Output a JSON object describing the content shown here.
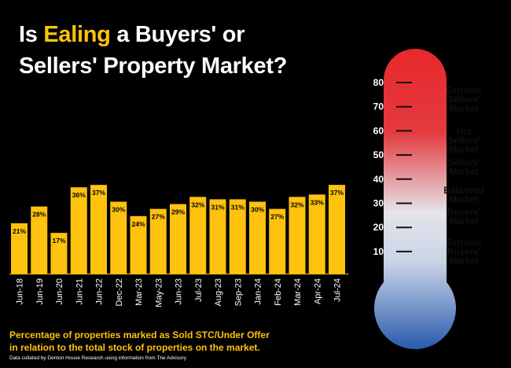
{
  "title": {
    "prefix": "Is ",
    "highlight": "Ealing",
    "suffix": " a Buyers' or",
    "line2": "Sellers' Property Market?"
  },
  "caption": {
    "line1": "Percentage of properties marked as Sold STC/Under Offer",
    "line2": "in relation to the total stock of properties on the market."
  },
  "credit": "Data collated by Denton House Research using information from The Advisory",
  "colors": {
    "bar": "#ffc20e",
    "highlight": "#ffc20e",
    "thermo_top": "#e8282c",
    "thermo_mid": "#e4e4ea",
    "thermo_bottom": "#2e5fb0"
  },
  "chart_data": {
    "type": "bar",
    "categories": [
      "Jun-18",
      "Jun-19",
      "Jun-20",
      "Jun-21",
      "Jun-22",
      "Dec-22",
      "Mar-23",
      "May-23",
      "Jun-23",
      "Jul-23",
      "Aug-23",
      "Sep-23",
      "Jan-24",
      "Feb-24",
      "Mar-24",
      "Apr-24",
      "Jul-24"
    ],
    "values": [
      21,
      28,
      17,
      36,
      37,
      30,
      24,
      27,
      29,
      32,
      31,
      31,
      30,
      27,
      32,
      33,
      37
    ],
    "value_labels": [
      "21%",
      "28%",
      "17%",
      "36%",
      "37%",
      "30%",
      "24%",
      "27%",
      "29%",
      "32%",
      "31%",
      "31%",
      "30%",
      "27%",
      "32%",
      "33%",
      "37%"
    ],
    "ylim": [
      0,
      80
    ],
    "grid": false
  },
  "thermometer": {
    "ticks": [
      "80",
      "70",
      "60",
      "50",
      "40",
      "30",
      "20",
      "10"
    ],
    "tick_values": [
      80,
      70,
      60,
      50,
      40,
      30,
      20,
      10
    ],
    "zones": [
      {
        "lines": [
          "Extreme",
          "Sellers'",
          "Market"
        ],
        "value": 73
      },
      {
        "lines": [
          "Hot",
          "Sellers'",
          "Market"
        ],
        "value": 56
      },
      {
        "lines": [
          "Sellers'",
          "Market"
        ],
        "value": 45
      },
      {
        "lines": [
          "Balanced",
          "Market"
        ],
        "value": 33.5
      },
      {
        "lines": [
          "Buyers'",
          "Market"
        ],
        "value": 24.5
      },
      {
        "lines": [
          "Extreme",
          "Buyers'",
          "Market"
        ],
        "value": 10
      }
    ]
  }
}
